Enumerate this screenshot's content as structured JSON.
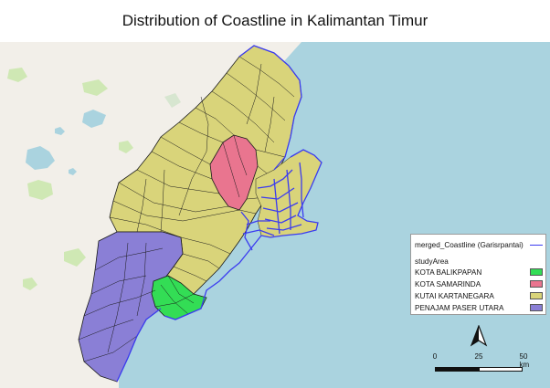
{
  "title": "Distribution of Coastline in Kalimantan Timur",
  "legend": {
    "coastline_layer": "merged_Coastline (Garisrpantai)",
    "group_title": "studyArea",
    "items": [
      {
        "label": "KOTA BALIKPAPAN",
        "color": "#33dd55"
      },
      {
        "label": "KOTA SAMARINDA",
        "color": "#e9758f"
      },
      {
        "label": "KUTAI KARTANEGARA",
        "color": "#d9d47a"
      },
      {
        "label": "PENAJAM PASER UTARA",
        "color": "#8a7fd6"
      }
    ],
    "coastline_color": "#3b3bf0"
  },
  "scale_bar": {
    "labels": [
      "0",
      "25",
      "50 km"
    ]
  },
  "colors": {
    "sea": "#aad3df",
    "land": "#f2efe9",
    "forest": "#cfe8b4",
    "lake": "#aad3df",
    "boundary": "#1a1a1a"
  },
  "north_arrow_icon": "north-arrow-icon"
}
